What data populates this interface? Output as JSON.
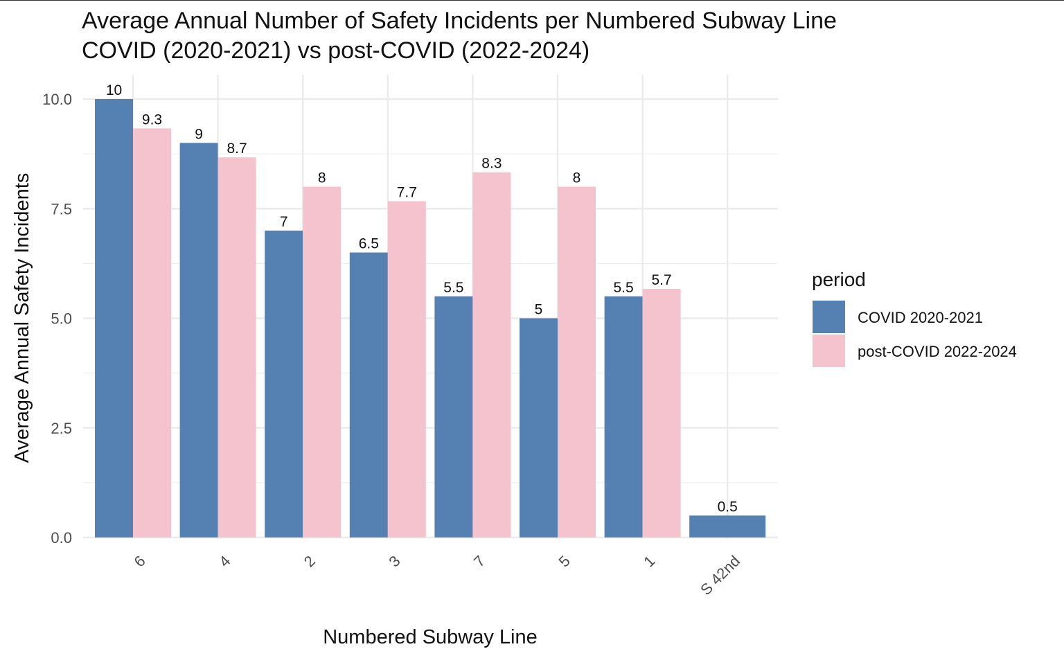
{
  "chart_data": {
    "type": "bar",
    "title": "Average Annual Number of Safety Incidents per Numbered Subway Line",
    "subtitle": "COVID (2020-2021) vs post-COVID (2022-2024)",
    "xlabel": "Numbered Subway Line",
    "ylabel": "Average Annual Safety Incidents",
    "categories": [
      "6",
      "4",
      "2",
      "3",
      "7",
      "5",
      "1",
      "S 42nd"
    ],
    "series": [
      {
        "name": "COVID 2020-2021",
        "values": [
          10,
          9,
          7,
          6.5,
          5.5,
          5,
          5.5,
          0.5
        ],
        "labels": [
          "10",
          "9",
          "7",
          "6.5",
          "5.5",
          "5",
          "5.5",
          "0.5"
        ],
        "color": "#5580b2"
      },
      {
        "name": "post-COVID 2022-2024",
        "values": [
          9.33,
          8.67,
          8,
          7.67,
          8.33,
          8,
          5.67,
          null
        ],
        "labels": [
          "9.3",
          "8.7",
          "8",
          "7.7",
          "8.3",
          "8",
          "5.7",
          ""
        ],
        "color": "#f5c3ce"
      }
    ],
    "ylim": [
      0,
      10.5
    ],
    "yticks": [
      0,
      2.5,
      5,
      7.5,
      10
    ],
    "ytick_labels": [
      "0.0",
      "2.5",
      "5.0",
      "7.5",
      "10.0"
    ],
    "grid": true,
    "legend": {
      "title": "period",
      "position": "right"
    }
  }
}
